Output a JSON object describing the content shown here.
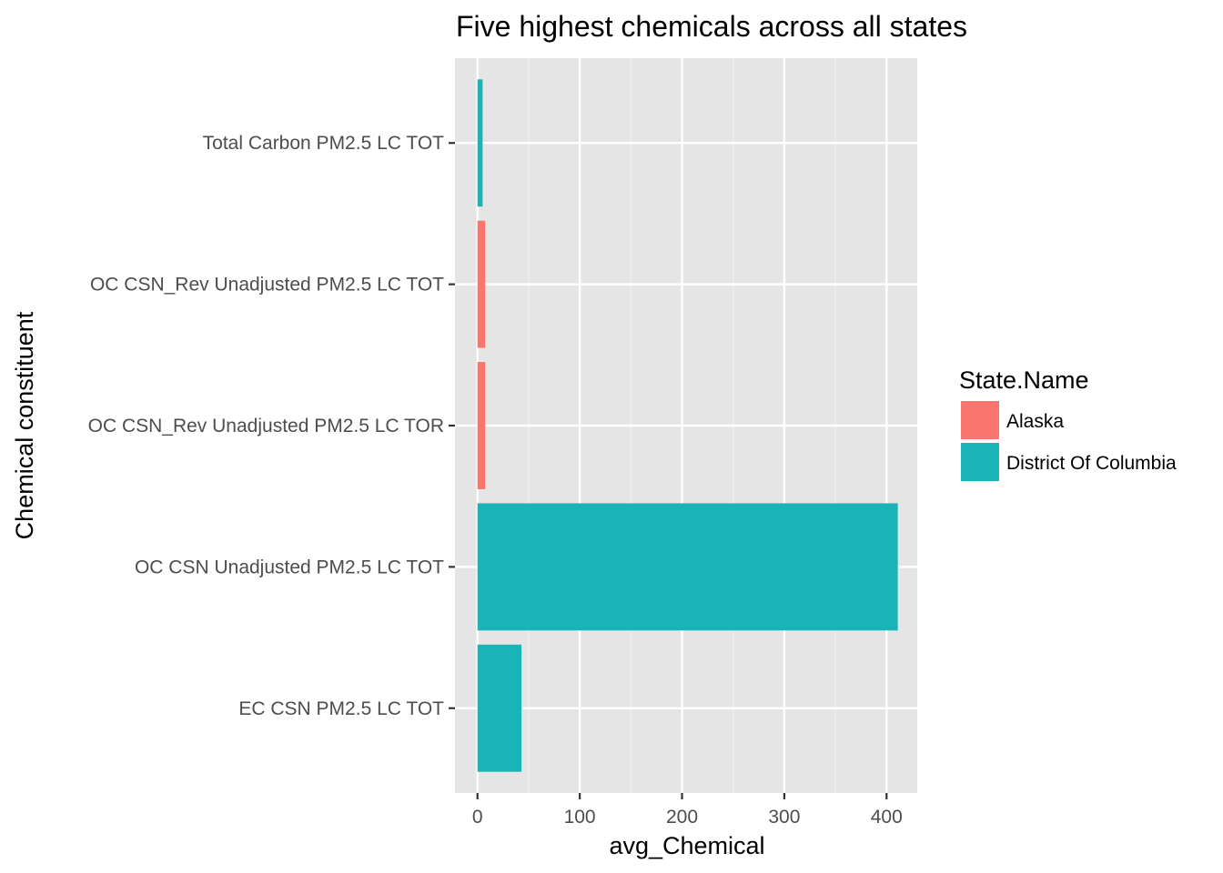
{
  "chart_data": {
    "type": "bar",
    "orientation": "horizontal",
    "title": "Five highest chemicals across all states",
    "xlabel": "avg_Chemical",
    "ylabel": "Chemical constituent",
    "xlim": [
      -22,
      430
    ],
    "x_ticks": [
      0,
      100,
      200,
      300,
      400
    ],
    "x_tick_labels": [
      "0",
      "100",
      "200",
      "300",
      "400"
    ],
    "grid": true,
    "categories": [
      "EC CSN PM2.5 LC TOT",
      "OC CSN Unadjusted PM2.5 LC TOT",
      "OC CSN_Rev Unadjusted PM2.5 LC TOR",
      "OC CSN_Rev Unadjusted PM2.5 LC TOT",
      "Total Carbon PM2.5 LC TOT"
    ],
    "values": [
      43,
      411,
      7.5,
      7.5,
      5
    ],
    "bar_series": [
      "District Of Columbia",
      "District Of Columbia",
      "Alaska",
      "Alaska",
      "District Of Columbia"
    ],
    "legend": {
      "title": "State.Name",
      "placement": "right",
      "entries": [
        {
          "name": "Alaska",
          "color": "#F8766D"
        },
        {
          "name": "District Of Columbia",
          "color": "#00BFC4"
        }
      ]
    },
    "colors": {
      "Alaska": "#F8766D",
      "District Of Columbia": "#1AB3B8",
      "panel_background": "#E5E5E5",
      "grid_major": "#FFFFFF",
      "grid_minor": "#F0F0F0"
    }
  }
}
